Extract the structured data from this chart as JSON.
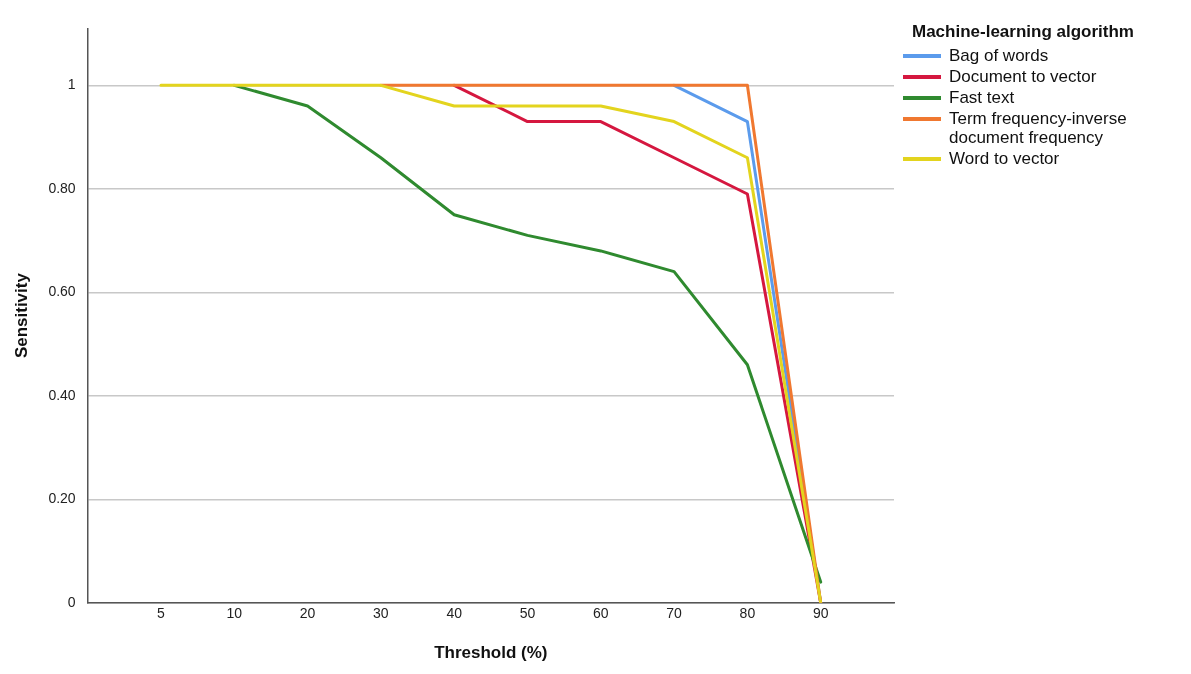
{
  "chart_data": {
    "type": "line",
    "xlabel": "Threshold (%)",
    "ylabel": "Sensitivity",
    "legend_title": "Machine-learning algorithm",
    "legend": "right",
    "grid": "y",
    "marker": "none",
    "line_style": "solid",
    "categories": [
      "5",
      "10",
      "20",
      "30",
      "40",
      "50",
      "60",
      "70",
      "80",
      "90"
    ],
    "ylim": [
      0,
      1.11
    ],
    "yticks": [
      {
        "value": 0,
        "label": "0"
      },
      {
        "value": 0.2,
        "label": "0.20"
      },
      {
        "value": 0.4,
        "label": "0.40"
      },
      {
        "value": 0.6,
        "label": "0.60"
      },
      {
        "value": 0.8,
        "label": "0.80"
      },
      {
        "value": 1,
        "label": "1"
      }
    ],
    "series": [
      {
        "name": "Bag of words",
        "color": "#5b9bec",
        "values": [
          null,
          null,
          null,
          null,
          null,
          null,
          null,
          1,
          0.93,
          0
        ]
      },
      {
        "name": "Document to vector",
        "color": "#d5173f",
        "values": [
          null,
          null,
          null,
          null,
          1,
          0.93,
          0.93,
          0.86,
          0.79,
          0
        ]
      },
      {
        "name": "Fast text",
        "color": "#2f8a2f",
        "values": [
          null,
          1,
          0.96,
          0.86,
          0.75,
          0.71,
          0.68,
          0.64,
          0.46,
          0.04
        ]
      },
      {
        "name": "Term frequency-inverse document frequency",
        "color": "#f07830",
        "values": [
          null,
          null,
          null,
          1,
          1,
          1,
          1,
          1,
          1,
          0
        ]
      },
      {
        "name": "Word to vector",
        "color": "#e3d41e",
        "values": [
          1,
          1,
          1,
          1,
          0.96,
          0.96,
          0.96,
          0.93,
          0.86,
          0
        ]
      }
    ]
  }
}
